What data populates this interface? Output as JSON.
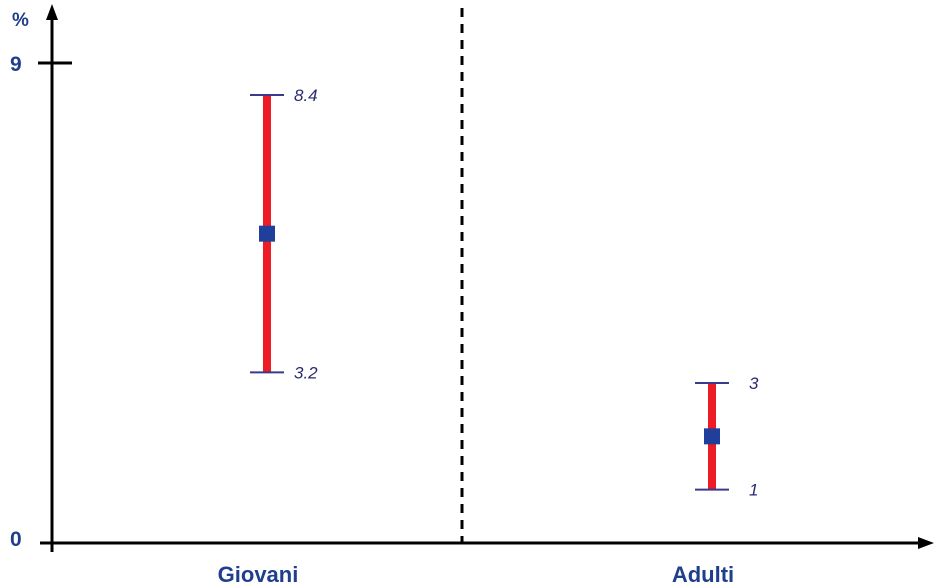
{
  "chart_data": {
    "type": "error-bar",
    "ylabel": "%",
    "ylim": [
      0,
      9
    ],
    "y_ticks": [
      "0",
      "9"
    ],
    "categories": [
      "Giovani",
      "Adulti"
    ],
    "series": [
      {
        "category": "Giovani",
        "low": 3.2,
        "high": 8.4,
        "point": 5.8,
        "low_label": "3.2",
        "high_label": "8.4"
      },
      {
        "category": "Adulti",
        "low": 1,
        "high": 3,
        "point": 2,
        "low_label": "1",
        "high_label": "3"
      }
    ],
    "colors": {
      "bar": "#ee1c24",
      "point": "#1f3f9a",
      "cap": "#3a3a8c",
      "axis": "#000000",
      "text": "#1f3f8c"
    },
    "separator": "dashed"
  }
}
